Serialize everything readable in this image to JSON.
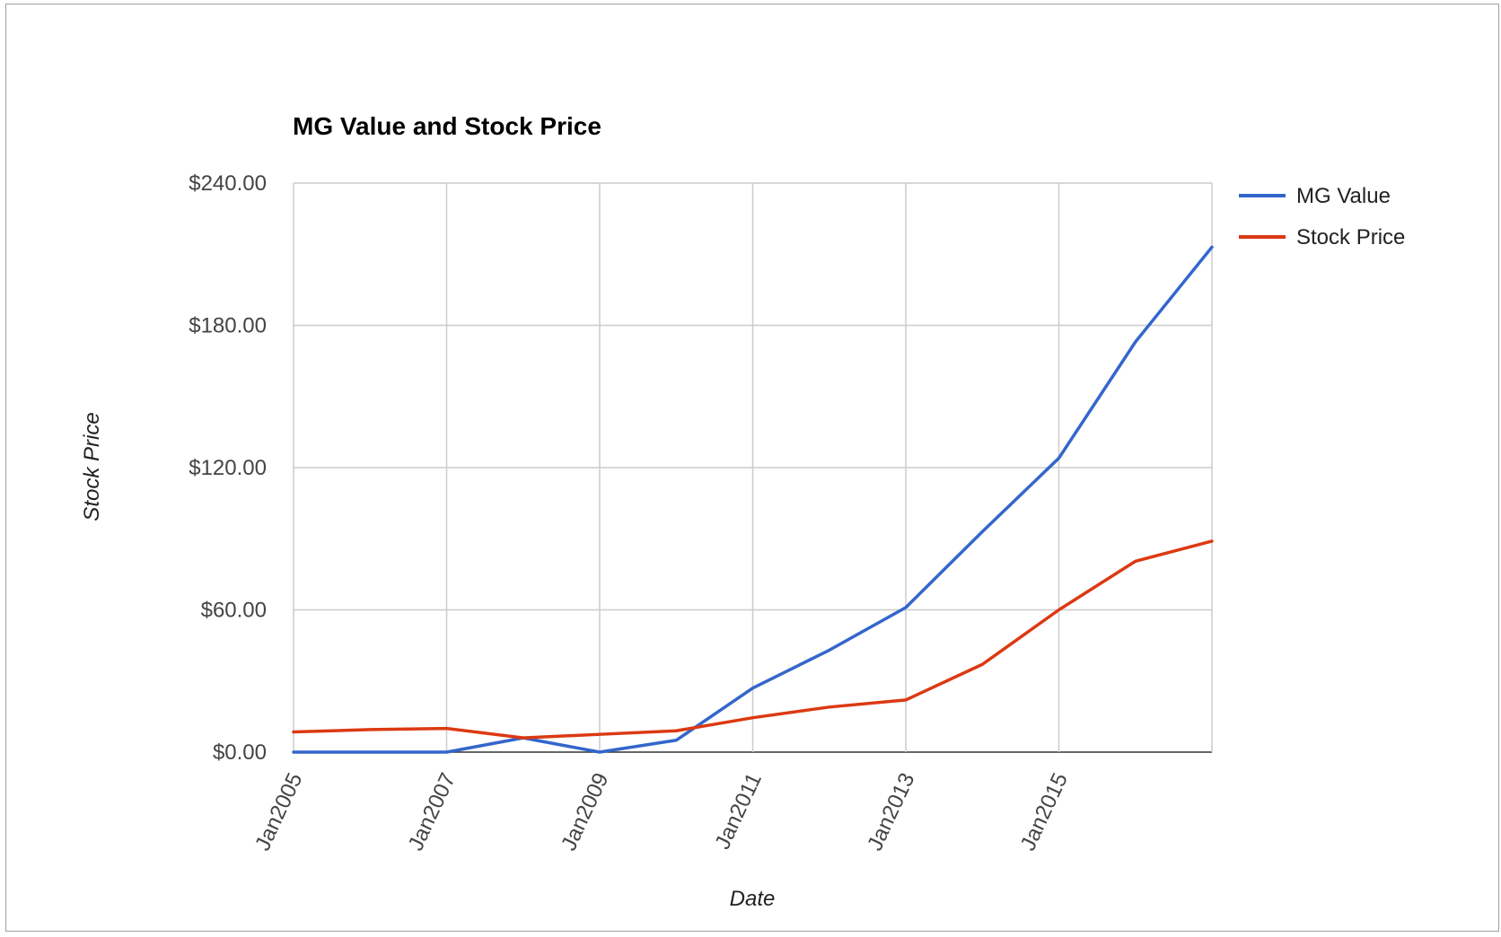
{
  "chart_data": {
    "type": "line",
    "title": "MG Value and Stock Price",
    "xlabel": "Date",
    "ylabel": "Stock Price",
    "x": [
      "2005",
      "2006",
      "2007",
      "2008",
      "2009",
      "2010",
      "2011",
      "2012",
      "2013",
      "2014",
      "2015",
      "2016",
      "2017"
    ],
    "x_tick_labels": [
      "Jan2005",
      "Jan2007",
      "Jan2009",
      "Jan2011",
      "Jan2013",
      "Jan2015"
    ],
    "y_tick_labels": [
      "$0.00",
      "$60.00",
      "$120.00",
      "$180.00",
      "$240.00"
    ],
    "ylim": [
      0,
      240
    ],
    "grid": true,
    "legend_position": "right",
    "series": [
      {
        "name": "MG Value",
        "color": "#3366cc",
        "values": [
          0,
          0,
          0,
          6,
          0,
          5,
          27,
          43,
          61,
          93,
          124,
          173,
          213
        ]
      },
      {
        "name": "Stock Price",
        "color": "#dc3912",
        "values": [
          8.5,
          9.5,
          10,
          6,
          7.5,
          9,
          14.5,
          19,
          22,
          37,
          60,
          80.5,
          89
        ]
      }
    ]
  }
}
